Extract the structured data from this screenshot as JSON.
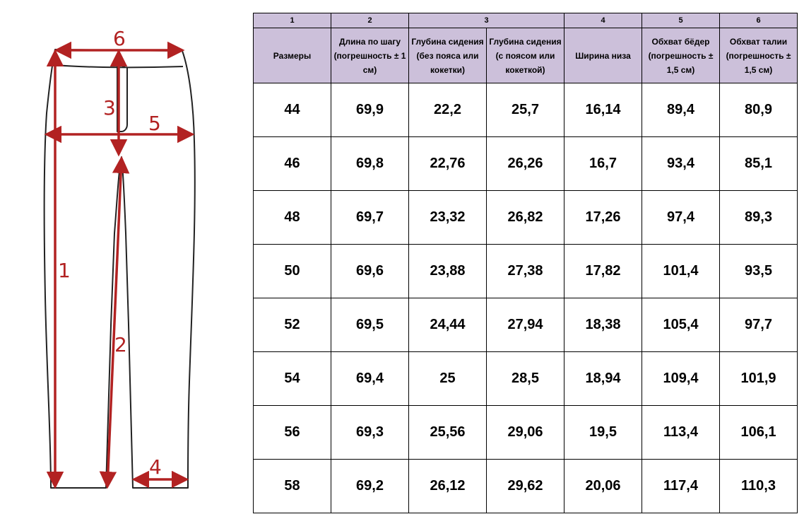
{
  "diagram": {
    "labels": [
      "1",
      "2",
      "3",
      "4",
      "5",
      "6"
    ],
    "arrow_color": "#b22222"
  },
  "table": {
    "column_numbers": [
      "1",
      "2",
      "3",
      "4",
      "5",
      "6"
    ],
    "headers": [
      "Размеры",
      "Длина по шагу (погрешность ± 1 см)",
      "Глубина сидения (без пояса или кокетки)",
      "Глубина сидения   (с поясом или кокеткой)",
      "Ширина низа",
      "Обхват бёдер (погрешность ± 1,5 см)",
      "Обхват талии (погрешность ± 1,5 см)"
    ],
    "rows": [
      [
        "44",
        "69,9",
        "22,2",
        "25,7",
        "16,14",
        "89,4",
        "80,9"
      ],
      [
        "46",
        "69,8",
        "22,76",
        "26,26",
        "16,7",
        "93,4",
        "85,1"
      ],
      [
        "48",
        "69,7",
        "23,32",
        "26,82",
        "17,26",
        "97,4",
        "89,3"
      ],
      [
        "50",
        "69,6",
        "23,88",
        "27,38",
        "17,82",
        "101,4",
        "93,5"
      ],
      [
        "52",
        "69,5",
        "24,44",
        "27,94",
        "18,38",
        "105,4",
        "97,7"
      ],
      [
        "54",
        "69,4",
        "25",
        "28,5",
        "18,94",
        "109,4",
        "101,9"
      ],
      [
        "56",
        "69,3",
        "25,56",
        "29,06",
        "19,5",
        "113,4",
        "106,1"
      ],
      [
        "58",
        "69,2",
        "26,12",
        "29,62",
        "20,06",
        "117,4",
        "110,3"
      ]
    ],
    "header_color": "#ccc0da"
  }
}
